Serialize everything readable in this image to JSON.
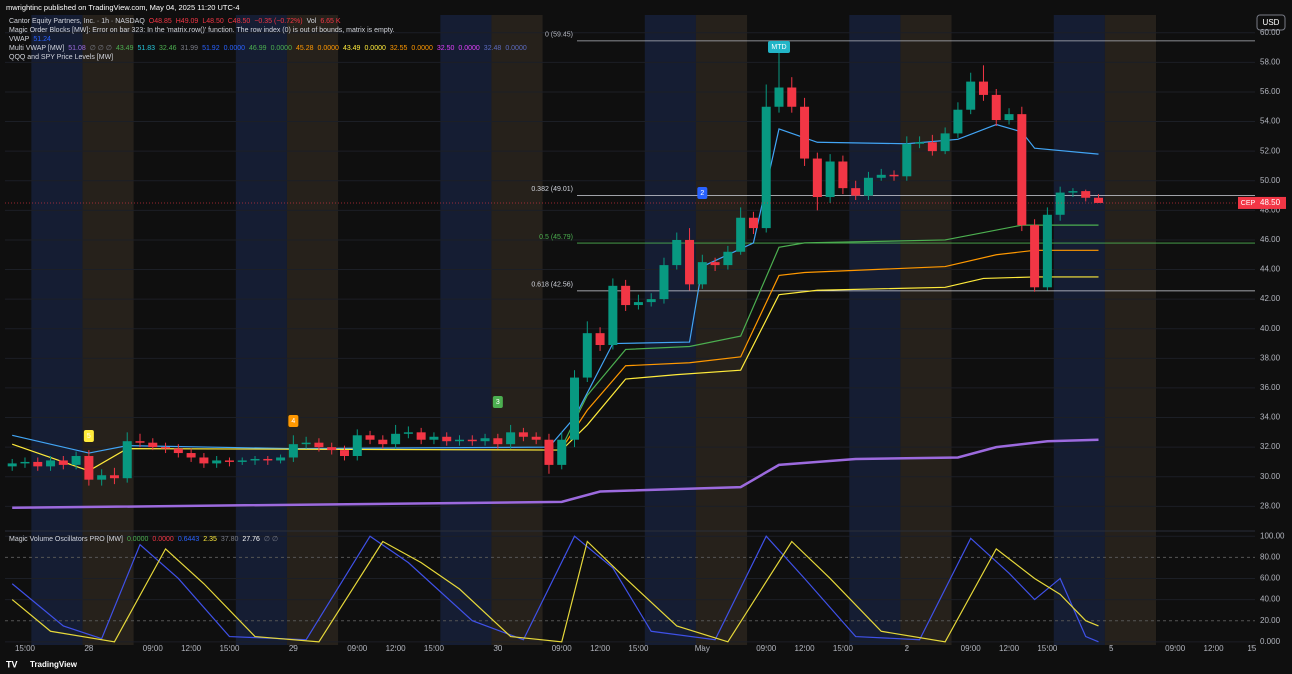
{
  "header": "mwrightinc published on TradingView.com, May 04, 2025 11:20 UTC-4",
  "footer": "TradingView",
  "legend": [
    [
      {
        "text": "Cantor Equity Partners, Inc. · 1h · NASDAQ",
        "color": "#d1d4dc"
      },
      {
        "text": "O48.85",
        "color": "#f23645"
      },
      {
        "text": "H49.09",
        "color": "#f23645"
      },
      {
        "text": "L48.50",
        "color": "#f23645"
      },
      {
        "text": "C48.50",
        "color": "#f23645"
      },
      {
        "text": "−0.35 (−0.72%)",
        "color": "#f23645"
      },
      {
        "text": "Vol",
        "color": "#d1d4dc"
      },
      {
        "text": "6.65 K",
        "color": "#f23645"
      }
    ],
    [
      {
        "text": "Magic Order Blocks [MW]: Error on bar 323: In the 'matrix.row()' function. The row index (0) is out of bounds, matrix is empty.",
        "color": "#d1d4dc"
      }
    ],
    [
      {
        "text": "VWAP",
        "color": "#d1d4dc"
      },
      {
        "text": "51.24",
        "color": "#2962ff"
      }
    ],
    [
      {
        "text": "Multi VWAP [MW]",
        "color": "#d1d4dc"
      },
      {
        "text": "51.08",
        "color": "#9c6ade"
      },
      {
        "text": "∅ ∅ ∅",
        "color": "#787b86"
      },
      {
        "text": "43.49",
        "color": "#4caf50"
      },
      {
        "text": "51.83",
        "color": "#26c6da"
      },
      {
        "text": "32.46",
        "color": "#4caf50"
      },
      {
        "text": "31.99",
        "color": "#787b86"
      },
      {
        "text": "51.92",
        "color": "#2962ff"
      },
      {
        "text": "0.0000",
        "color": "#2962ff"
      },
      {
        "text": "46.99",
        "color": "#4caf50"
      },
      {
        "text": "0.0000",
        "color": "#4caf50"
      },
      {
        "text": "45.28",
        "color": "#ff9800"
      },
      {
        "text": "0.0000",
        "color": "#ff9800"
      },
      {
        "text": "43.49",
        "color": "#ffeb3b"
      },
      {
        "text": "0.0000",
        "color": "#ffeb3b"
      },
      {
        "text": "32.55",
        "color": "#ff9800"
      },
      {
        "text": "0.0000",
        "color": "#ff9800"
      },
      {
        "text": "32.50",
        "color": "#e040fb"
      },
      {
        "text": "0.0000",
        "color": "#e040fb"
      },
      {
        "text": "32.48",
        "color": "#5c6bc0"
      },
      {
        "text": "0.0000",
        "color": "#5c6bc0"
      }
    ],
    [
      {
        "text": "QQQ and SPY Price Levels [MW]",
        "color": "#d1d4dc"
      }
    ]
  ],
  "osc_legend": [
    {
      "text": "Magic Volume Oscillators PRO [MW]",
      "color": "#d1d4dc"
    },
    {
      "text": "0.0000",
      "color": "#4caf50"
    },
    {
      "text": "0.0000",
      "color": "#f23645"
    },
    {
      "text": "0.6443",
      "color": "#2962ff"
    },
    {
      "text": "2.35",
      "color": "#ffeb3b"
    },
    {
      "text": "37.80",
      "color": "#787b86"
    },
    {
      "text": "27.76",
      "color": "#ffffff"
    },
    {
      "text": "∅ ∅",
      "color": "#787b86"
    }
  ],
  "currency": "USD",
  "chart_data": {
    "type": "candlestick",
    "up_color": "#089981",
    "down_color": "#f23645",
    "candles": {
      "open": [
        30.7,
        30.9,
        31.0,
        30.7,
        31.1,
        30.8,
        31.4,
        29.8,
        30.1,
        29.9,
        32.4,
        32.3,
        32.0,
        31.9,
        31.6,
        31.3,
        30.9,
        31.1,
        31.0,
        31.1,
        31.2,
        31.1,
        31.3,
        32.2,
        32.3,
        32.0,
        31.8,
        31.4,
        32.8,
        32.5,
        32.2,
        32.9,
        33.0,
        32.5,
        32.7,
        32.4,
        32.5,
        32.4,
        32.6,
        32.2,
        33.0,
        32.7,
        32.5,
        30.8,
        32.5,
        36.7,
        39.7,
        38.9,
        42.9,
        41.6,
        41.8,
        42.0,
        44.3,
        46.0,
        43.0,
        44.5,
        44.3,
        45.2,
        47.5,
        46.8,
        55.0,
        56.3,
        55.0,
        51.5,
        48.9,
        51.3,
        49.5,
        49.0,
        50.2,
        50.4,
        50.3,
        52.5,
        52.6,
        52.0,
        53.2,
        54.8,
        56.7,
        55.8,
        54.1,
        54.5,
        47.0,
        42.8,
        47.7,
        49.2,
        49.3,
        48.85
      ],
      "high": [
        31.2,
        31.3,
        31.3,
        31.4,
        31.4,
        31.7,
        31.8,
        30.5,
        30.6,
        33.0,
        32.9,
        32.6,
        32.3,
        32.2,
        31.9,
        31.6,
        31.4,
        31.3,
        31.3,
        31.4,
        31.4,
        31.5,
        32.8,
        32.7,
        32.6,
        32.3,
        32.1,
        33.2,
        33.1,
        32.8,
        33.5,
        33.4,
        33.3,
        33.0,
        33.0,
        32.8,
        32.8,
        32.9,
        32.9,
        33.5,
        33.3,
        33.0,
        32.9,
        33.0,
        37.2,
        40.5,
        40.1,
        43.4,
        43.3,
        42.3,
        42.4,
        44.8,
        46.5,
        46.8,
        45.0,
        44.8,
        45.6,
        48.2,
        47.9,
        56.5,
        59.4,
        57.0,
        55.6,
        51.9,
        51.8,
        51.7,
        50.0,
        50.6,
        50.8,
        50.7,
        53.0,
        53.0,
        53.1,
        53.6,
        55.3,
        57.3,
        57.8,
        56.2,
        54.9,
        55.0,
        47.4,
        48.2,
        49.6,
        49.5,
        49.4,
        49.09
      ],
      "low": [
        30.4,
        30.6,
        30.4,
        30.4,
        30.5,
        30.5,
        29.4,
        29.4,
        29.5,
        29.6,
        32.0,
        31.8,
        31.6,
        31.3,
        31.0,
        30.6,
        30.6,
        30.7,
        30.8,
        30.8,
        30.8,
        30.9,
        31.0,
        31.9,
        31.7,
        31.5,
        31.1,
        31.1,
        32.2,
        31.9,
        31.9,
        32.6,
        32.2,
        32.2,
        32.1,
        32.1,
        32.1,
        32.1,
        31.9,
        31.9,
        32.4,
        32.2,
        30.2,
        30.5,
        32.0,
        36.4,
        38.5,
        38.6,
        41.2,
        41.3,
        41.5,
        41.7,
        44.0,
        42.6,
        42.7,
        43.9,
        44.0,
        45.0,
        46.4,
        46.5,
        54.6,
        54.6,
        51.0,
        48.0,
        48.5,
        49.1,
        48.7,
        48.7,
        50.0,
        50.0,
        50.0,
        52.2,
        51.7,
        51.8,
        52.9,
        54.5,
        55.4,
        53.7,
        53.8,
        46.6,
        42.5,
        42.6,
        47.3,
        48.9,
        48.6,
        48.5
      ],
      "close": [
        30.9,
        31.0,
        30.7,
        31.1,
        30.8,
        31.4,
        29.8,
        30.1,
        29.9,
        32.4,
        32.3,
        32.0,
        31.9,
        31.6,
        31.3,
        30.9,
        31.1,
        31.0,
        31.1,
        31.2,
        31.1,
        31.3,
        32.2,
        32.3,
        32.0,
        31.8,
        31.4,
        32.8,
        32.5,
        32.2,
        32.9,
        33.0,
        32.5,
        32.7,
        32.4,
        32.5,
        32.4,
        32.6,
        32.2,
        33.0,
        32.7,
        32.5,
        30.8,
        32.5,
        36.7,
        39.7,
        38.9,
        42.9,
        41.6,
        41.8,
        42.0,
        44.3,
        46.0,
        43.0,
        44.5,
        44.3,
        45.2,
        47.5,
        46.8,
        55.0,
        56.3,
        55.0,
        51.5,
        48.9,
        51.3,
        49.5,
        49.0,
        50.2,
        50.4,
        50.3,
        52.5,
        52.6,
        52.0,
        53.2,
        54.8,
        56.7,
        55.8,
        54.1,
        54.5,
        47.0,
        42.8,
        47.7,
        49.2,
        49.3,
        48.85,
        48.5
      ]
    },
    "lines": [
      {
        "name": "VWAP",
        "color": "#42a5f5",
        "x": [
          0,
          6,
          9,
          22,
          42,
          44,
          47,
          53,
          54,
          58,
          60,
          63,
          70,
          74,
          77,
          79,
          80,
          85
        ],
        "values": [
          32.8,
          31.6,
          32.1,
          31.9,
          32.0,
          34,
          39.0,
          39.1,
          44.2,
          45.8,
          53.5,
          52.6,
          52.5,
          52.8,
          53.8,
          53.3,
          52.2,
          51.8
        ]
      },
      {
        "color": "#4caf50",
        "x": [
          43,
          45,
          48,
          53,
          57,
          60,
          62,
          73,
          76,
          79,
          85
        ],
        "values": [
          32,
          35.5,
          38.6,
          38.8,
          39.5,
          45.5,
          45.8,
          46.0,
          46.5,
          47.0,
          47.0
        ]
      },
      {
        "color": "#ff9800",
        "x": [
          43,
          45,
          48,
          53,
          57,
          60,
          62,
          73,
          77,
          80,
          85
        ],
        "values": [
          31.9,
          34.5,
          37.5,
          37.7,
          38.1,
          43.6,
          43.8,
          44.2,
          45.0,
          45.3,
          45.3
        ]
      },
      {
        "color": "#ffeb3b",
        "x": [
          0,
          6,
          9,
          43,
          45,
          48,
          52,
          57,
          60,
          63,
          73,
          76,
          80,
          85
        ],
        "values": [
          32.2,
          30.4,
          31.9,
          31.8,
          33.5,
          36.6,
          36.9,
          37.2,
          42.3,
          42.6,
          42.8,
          43.4,
          43.5,
          43.5
        ]
      },
      {
        "color": "#9c6ade",
        "x": [
          0,
          43,
          46,
          57,
          60,
          66,
          74,
          77,
          81,
          85
        ],
        "values": [
          27.9,
          28.3,
          29.0,
          29.3,
          30.8,
          31.2,
          31.3,
          32.0,
          32.4,
          32.5
        ]
      }
    ],
    "levels": [
      {
        "label": "0 (59.45)",
        "value": 59.45,
        "color": "#b2b5be"
      },
      {
        "label": "0.382 (49.01)",
        "value": 49.01,
        "color": "#d1d4dc"
      },
      {
        "label": "0.5 (45.79)",
        "value": 45.79,
        "color": "#4caf50"
      },
      {
        "label": "0.618 (42.56)",
        "value": 42.56,
        "color": "#d1d4dc"
      }
    ],
    "markers": [
      {
        "text": "MTD",
        "x": 60,
        "color": "#22b5c7"
      },
      {
        "text": "2",
        "x": 54,
        "color": "#2962ff"
      },
      {
        "text": "3",
        "x": 38,
        "color": "#4caf50"
      },
      {
        "text": "5",
        "x": 6,
        "color": "#ffeb3b"
      },
      {
        "text": "4",
        "x": 22,
        "color": "#ff9800"
      }
    ],
    "last_price": {
      "symbol": "CEP",
      "label": "48.50",
      "value": 48.5
    },
    "ylim": [
      26.4,
      61.2
    ],
    "yticks": [
      {
        "value": 28,
        "label": "28.00"
      },
      {
        "value": 30,
        "label": "30.00"
      },
      {
        "value": 32,
        "label": "32.00"
      },
      {
        "value": 34,
        "label": "34.00"
      },
      {
        "value": 36,
        "label": "36.00"
      },
      {
        "value": 38,
        "label": "38.00"
      },
      {
        "value": 40,
        "label": "40.00"
      },
      {
        "value": 42,
        "label": "42.00"
      },
      {
        "value": 44,
        "label": "44.00"
      },
      {
        "value": 46,
        "label": "46.00"
      },
      {
        "value": 48,
        "label": "48.00"
      },
      {
        "value": 50,
        "label": "50.00"
      },
      {
        "value": 52,
        "label": "52.00"
      },
      {
        "value": 54,
        "label": "54.00"
      },
      {
        "value": 56,
        "label": "56.00"
      },
      {
        "value": 58,
        "label": "58.00"
      },
      {
        "value": 60,
        "label": "60.00"
      }
    ],
    "xlim": [
      -0.5,
      97.5
    ],
    "xticks": [
      {
        "value": 1,
        "label": "15:00"
      },
      {
        "value": 6,
        "label": "28"
      },
      {
        "value": 11,
        "label": "09:00"
      },
      {
        "value": 14,
        "label": "12:00"
      },
      {
        "value": 17,
        "label": "15:00"
      },
      {
        "value": 22,
        "label": "29"
      },
      {
        "value": 27,
        "label": "09:00"
      },
      {
        "value": 30,
        "label": "12:00"
      },
      {
        "value": 33,
        "label": "15:00"
      },
      {
        "value": 38,
        "label": "30"
      },
      {
        "value": 43,
        "label": "09:00"
      },
      {
        "value": 46,
        "label": "12:00"
      },
      {
        "value": 49,
        "label": "15:00"
      },
      {
        "value": 54,
        "label": "May"
      },
      {
        "value": 59,
        "label": "09:00"
      },
      {
        "value": 62,
        "label": "12:00"
      },
      {
        "value": 65,
        "label": "15:00"
      },
      {
        "value": 70,
        "label": "2"
      },
      {
        "value": 75,
        "label": "09:00"
      },
      {
        "value": 78,
        "label": "12:00"
      },
      {
        "value": 81,
        "label": "15:00"
      },
      {
        "value": 86,
        "label": "5"
      },
      {
        "value": 91,
        "label": "09:00"
      },
      {
        "value": 94,
        "label": "12:00"
      },
      {
        "value": 97,
        "label": "15"
      }
    ],
    "oscillator": {
      "ylim": [
        -3,
        104
      ],
      "yticks": [
        {
          "value": 0,
          "label": "0.000"
        },
        {
          "value": 20,
          "label": "20.00"
        },
        {
          "value": 40,
          "label": "40.00"
        },
        {
          "value": 60,
          "label": "60.00"
        },
        {
          "value": 80,
          "label": "80.00"
        },
        {
          "value": 100,
          "label": "100.00"
        }
      ],
      "series": [
        {
          "color": "#3f51e8",
          "x": [
            0,
            4,
            7,
            10,
            13,
            17,
            23,
            28,
            31,
            36,
            40,
            44,
            47,
            50,
            55,
            59,
            62,
            66,
            71,
            75,
            78,
            80,
            82,
            84,
            85
          ],
          "values": [
            55,
            15,
            3,
            92,
            60,
            5,
            2,
            100,
            75,
            20,
            2,
            100,
            70,
            10,
            2,
            100,
            60,
            5,
            2,
            98,
            65,
            40,
            60,
            5,
            0
          ]
        },
        {
          "color": "#e6d83a",
          "x": [
            0,
            3,
            8,
            12,
            15,
            19,
            24,
            29,
            32,
            35,
            39,
            43,
            45,
            48,
            52,
            56,
            61,
            64,
            68,
            73,
            77,
            80,
            82,
            84,
            85
          ],
          "values": [
            40,
            10,
            0,
            88,
            55,
            5,
            0,
            95,
            75,
            50,
            5,
            0,
            95,
            60,
            15,
            0,
            95,
            60,
            10,
            0,
            88,
            60,
            45,
            20,
            15
          ]
        }
      ]
    }
  }
}
